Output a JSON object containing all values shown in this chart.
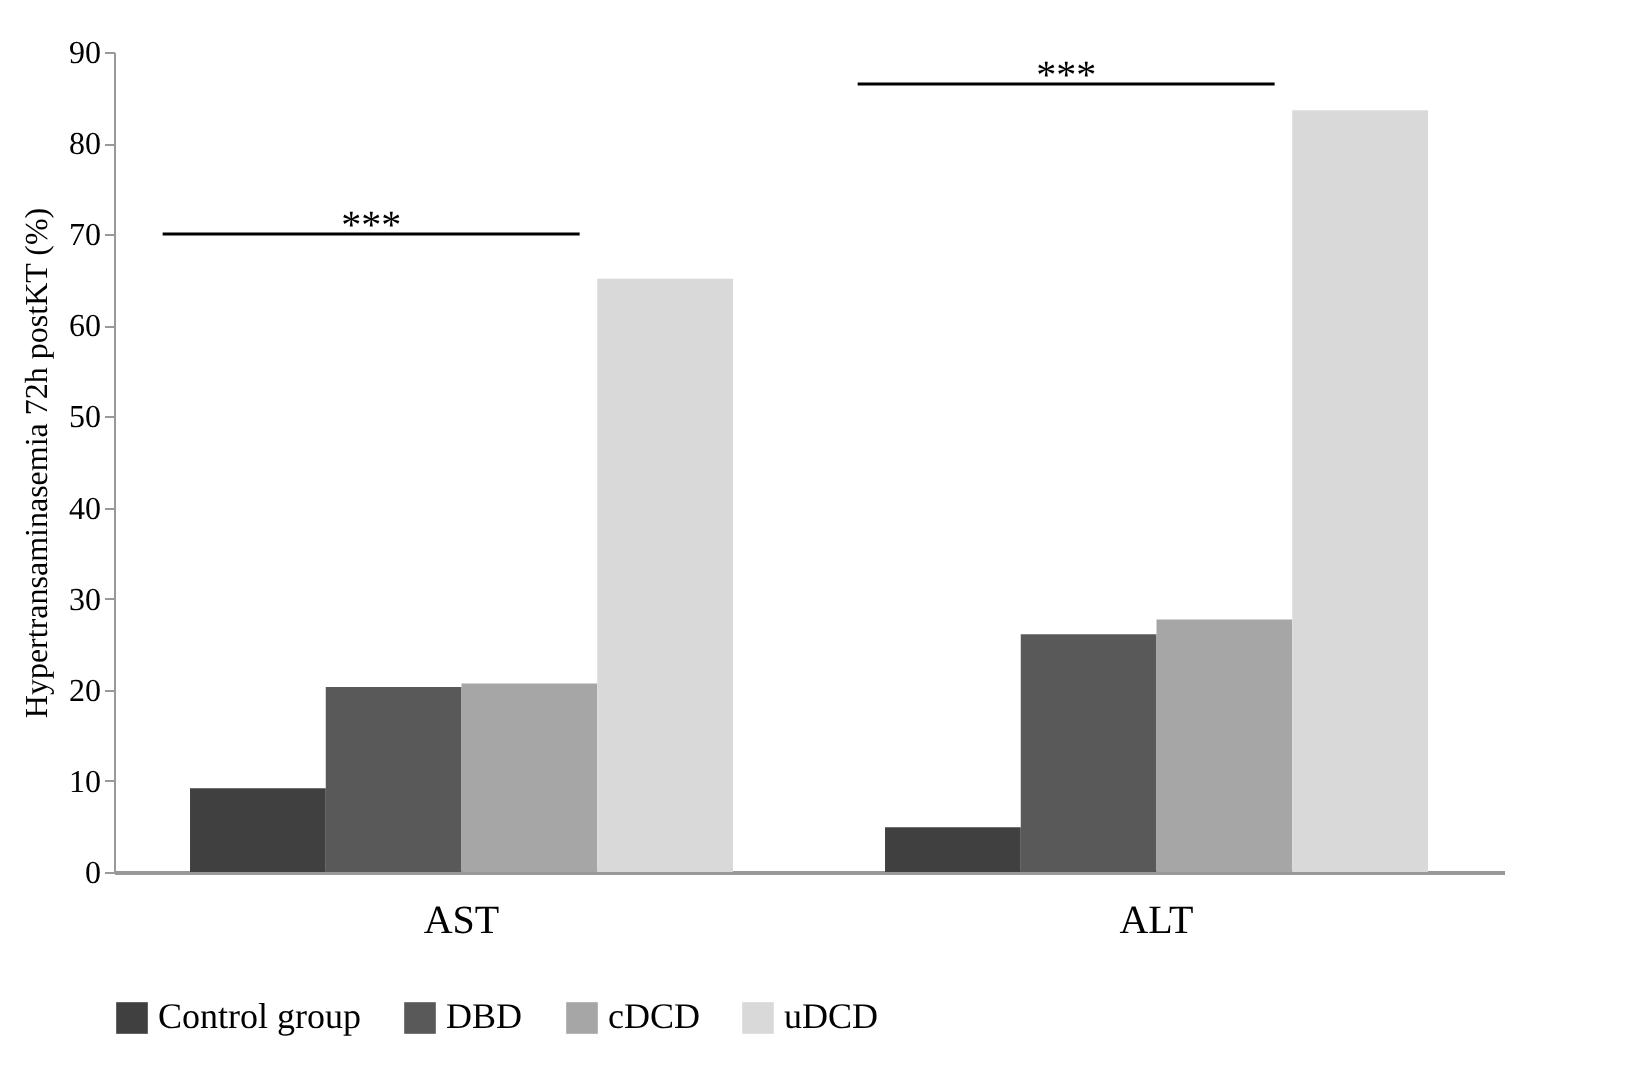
{
  "chart_data": {
    "type": "bar",
    "ylabel": "Hypertransaminasemia 72h postKT (%)",
    "categories": [
      "AST",
      "ALT"
    ],
    "series": [
      {
        "name": "Control group",
        "color": "#404040",
        "values": [
          9.2,
          4.9
        ]
      },
      {
        "name": "DBD",
        "color": "#595959",
        "values": [
          20.3,
          26.1
        ]
      },
      {
        "name": "cDCD",
        "color": "#a6a6a6",
        "values": [
          20.7,
          27.7
        ]
      },
      {
        "name": "uDCD",
        "color": "#d9d9d9",
        "values": [
          65.1,
          83.6
        ]
      }
    ],
    "ylim": [
      0,
      90
    ],
    "yticks": [
      0,
      10,
      20,
      30,
      40,
      50,
      60,
      70,
      80,
      90
    ],
    "grid": false,
    "legend": "bottom",
    "annotations": [
      "***",
      "***"
    ]
  }
}
